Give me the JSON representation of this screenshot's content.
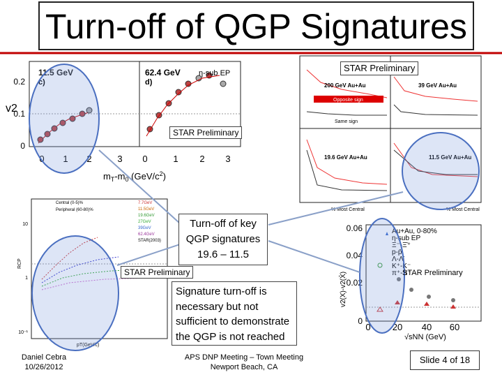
{
  "header": {
    "title": "Turn-off of QGP Signatures"
  },
  "plot_v2": {
    "y_label": "v2",
    "yticks": [
      "0.2",
      "0.1",
      "0"
    ],
    "xticks": [
      "0",
      "1",
      "2",
      "3",
      "0",
      "1",
      "2",
      "3"
    ],
    "panel_left": {
      "energy": "11.5 GeV",
      "tag": "c)"
    },
    "panel_right": {
      "energy": "62.4 GeV",
      "tag": "d)",
      "method": "η-sub EP"
    },
    "x_label": [
      "m",
      "T",
      "-m",
      "0",
      " (GeV/c",
      "2",
      ")"
    ],
    "preliminary": "STAR Preliminary"
  },
  "plot_lpv": {
    "preliminary": "STAR Preliminary",
    "panels": [
      "200 GeV Au+Au",
      "39 GeV Au+Au",
      "19.6 GeV Au+Au",
      "11.5 GeV Au+Au"
    ],
    "opposite": "Opposite sign",
    "same": "Same sign",
    "x_label": "% Most Central"
  },
  "plot_rcp": {
    "legend_top": [
      "Central (0-5)%",
      "Peripheral (60-80)%"
    ],
    "energies": [
      "7.7GeV",
      "11.5GeV",
      "19.6GeV",
      "27GeV",
      "39GeV",
      "62.4GeV",
      "STAR(2003)"
    ],
    "yticks": [
      "10",
      "1",
      "10⁻¹"
    ],
    "y_label": "RCP",
    "x_label": "pT(GeV/c)",
    "preliminary": "STAR Preliminary"
  },
  "callout_key": {
    "lines": [
      "Turn-off of key",
      "QGP signatures",
      "19.6 – 11.5"
    ]
  },
  "plot_dv2": {
    "yticks": [
      "0.06",
      "0.04",
      "0.02",
      "0"
    ],
    "xticks": [
      "0",
      "20",
      "40",
      "60"
    ],
    "legend": [
      "Au+Au, 0-80%",
      "η-sub EP",
      "Ξ⁻-Ξ̄⁺",
      "p-p̄",
      "Λ-Λ̄",
      "K⁺-K⁻",
      "π⁺-π⁻"
    ],
    "y_label": "v2(X)-v2(X̄)",
    "x_label": "√sNN (GeV)",
    "preliminary": "STAR Preliminary"
  },
  "callout_note": {
    "lines": [
      "Signature turn-off is",
      "necessary but not",
      "sufficient to demonstrate",
      "the QGP is not reached"
    ]
  },
  "footer": {
    "author": [
      "Daniel Cebra",
      "10/26/2012"
    ],
    "meeting": [
      "APS DNP Meeting – Town Meeting",
      "Newport Beach, CA"
    ],
    "slide": "Slide 4 of 18"
  }
}
